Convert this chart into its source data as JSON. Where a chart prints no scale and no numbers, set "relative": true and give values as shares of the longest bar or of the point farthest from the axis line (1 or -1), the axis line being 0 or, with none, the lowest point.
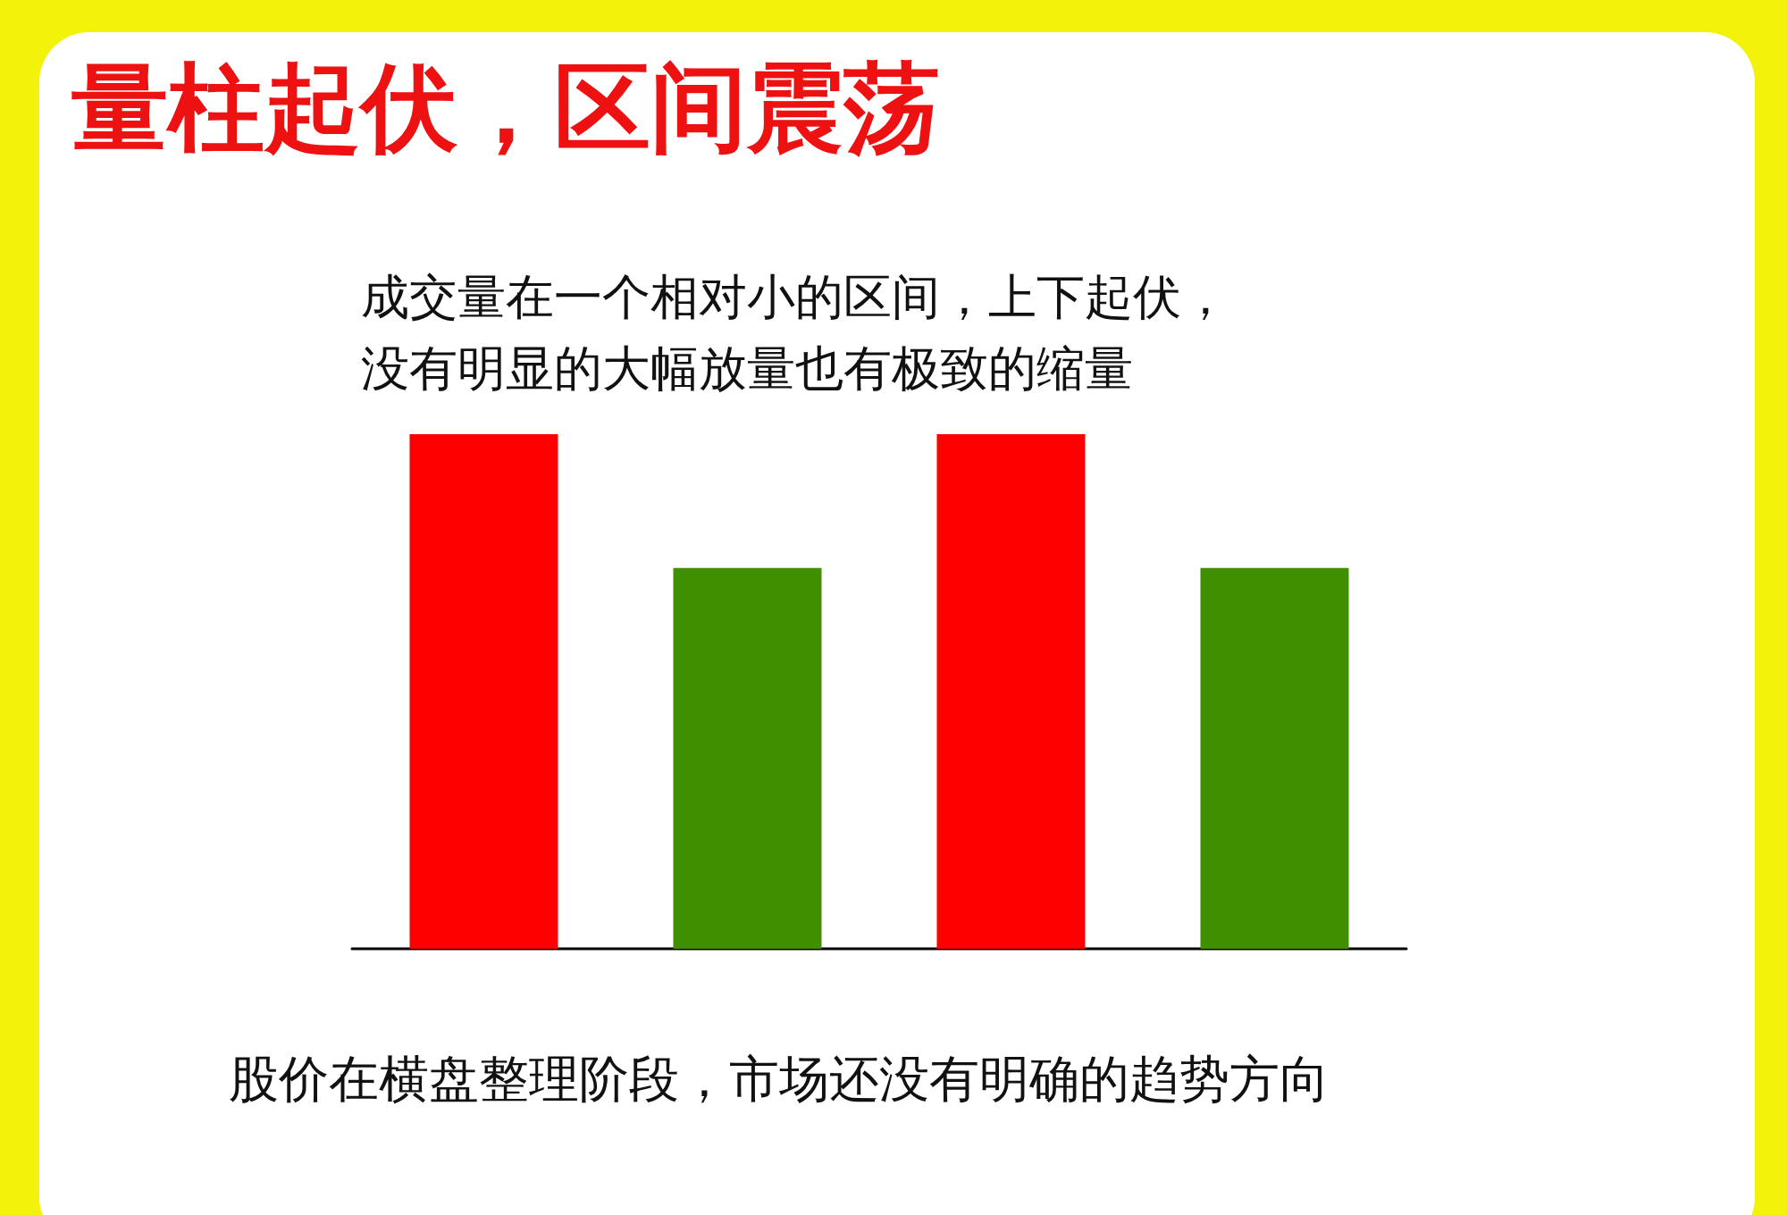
{
  "chart_data": {
    "type": "bar",
    "relative": true,
    "title": "量柱起伏，区间震荡",
    "subtitle": "成交量在一个相对小的区间，上下起伏，没有明显的大幅放量也有极致的缩量",
    "annotations": [
      "股价在横盘整理阶段，市场还没有明确的趋势方向"
    ],
    "categories": [
      null,
      null,
      null,
      null
    ],
    "values": [
      1,
      0.74,
      1,
      0.74
    ],
    "colors": [
      "#ff0000",
      "#3f8f00",
      "#ff0000",
      "#3f8f00"
    ]
  }
}
